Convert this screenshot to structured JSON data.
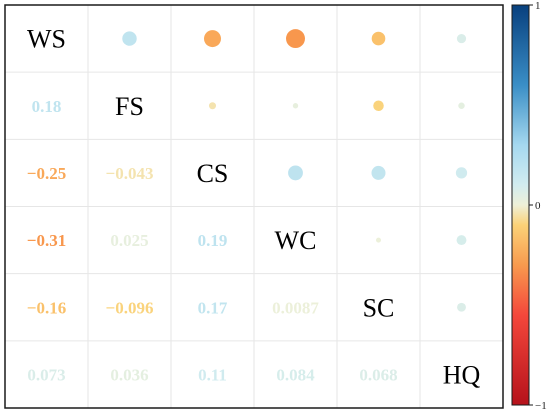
{
  "chart_data": {
    "type": "heatmap",
    "variables": [
      "WS",
      "FS",
      "CS",
      "WC",
      "SC",
      "HQ"
    ],
    "matrix": [
      [
        1,
        0.18,
        -0.25,
        -0.31,
        -0.16,
        0.073
      ],
      [
        0.18,
        1,
        -0.043,
        0.025,
        -0.096,
        0.036
      ],
      [
        -0.25,
        -0.043,
        1,
        0.19,
        0.17,
        0.11
      ],
      [
        -0.31,
        0.025,
        0.19,
        1,
        0.0087,
        0.084
      ],
      [
        -0.16,
        -0.096,
        0.17,
        0.0087,
        1,
        0.068
      ],
      [
        0.073,
        0.036,
        0.11,
        0.084,
        0.068,
        1
      ]
    ],
    "lower_labels": [
      [
        "",
        "",
        "",
        "",
        "",
        ""
      ],
      [
        "0.18",
        "",
        "",
        "",
        "",
        ""
      ],
      [
        "−0.25",
        "−0.043",
        "",
        "",
        "",
        ""
      ],
      [
        "−0.31",
        "0.025",
        "0.19",
        "",
        "",
        ""
      ],
      [
        "−0.16",
        "−0.096",
        "0.17",
        "0.0087",
        "",
        ""
      ],
      [
        "0.073",
        "0.036",
        "0.11",
        "0.084",
        "0.068",
        ""
      ]
    ],
    "lower_display": "numbers",
    "upper_display": "circles",
    "color_scale": {
      "min": -1,
      "max": 1,
      "stops": [
        {
          "value": -1,
          "color": "#b5121b"
        },
        {
          "value": -0.55,
          "color": "#f4473b"
        },
        {
          "value": -0.3,
          "color": "#f89a4e"
        },
        {
          "value": -0.1,
          "color": "#fbd278"
        },
        {
          "value": 0,
          "color": "#eef0d8"
        },
        {
          "value": 0.1,
          "color": "#d2ecef"
        },
        {
          "value": 0.3,
          "color": "#a5d8ef"
        },
        {
          "value": 0.6,
          "color": "#3a8ec6"
        },
        {
          "value": 1,
          "color": "#08407e"
        }
      ]
    },
    "colorbar": {
      "position": "right",
      "ticks": [
        "1",
        "0",
        "−1"
      ]
    },
    "grid": true
  }
}
